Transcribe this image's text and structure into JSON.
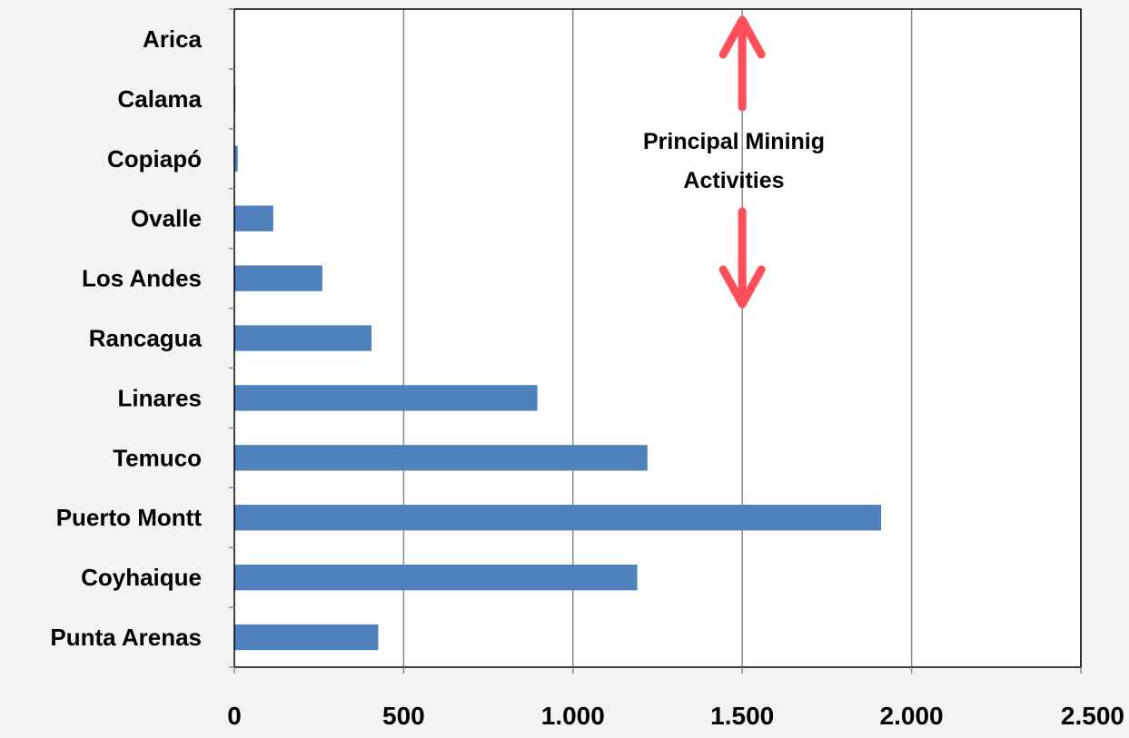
{
  "chart_data": {
    "type": "bar",
    "orientation": "horizontal",
    "categories": [
      "Arica",
      "Calama",
      "Copiapó",
      "Ovalle",
      "Los Andes",
      "Rancagua",
      "Linares",
      "Temuco",
      "Puerto Montt",
      "Coyhaique",
      "Punta Arenas"
    ],
    "values": [
      0,
      3,
      10,
      115,
      260,
      405,
      895,
      1220,
      1910,
      1190,
      425
    ],
    "xlim": [
      0,
      2500
    ],
    "xticks": [
      0,
      500,
      1000,
      1500,
      2000,
      2500
    ],
    "xtick_labels": [
      "0",
      "500",
      "1.000",
      "1.500",
      "2.000",
      "2.500"
    ],
    "title": "",
    "xlabel": "",
    "ylabel": "",
    "grid": "vertical",
    "bar_color": "#4f81bd",
    "annotation": {
      "lines": [
        "Principal Mininig",
        "Activities"
      ],
      "arrow_color": "#ff4f5a",
      "x_value": 1500
    }
  }
}
